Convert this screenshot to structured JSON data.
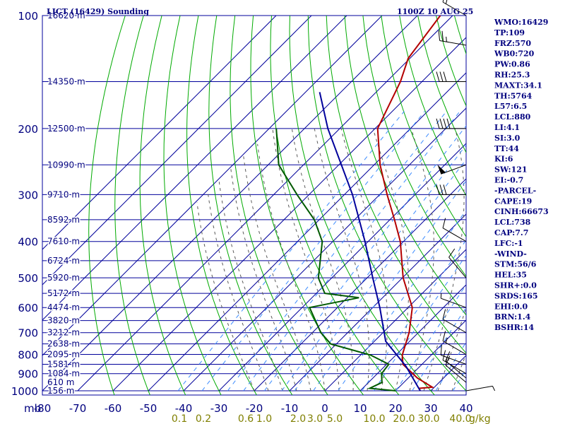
{
  "chart_data": {
    "type": "line",
    "title": "LICT (16429) Sounding",
    "datetime": "1100Z 10 AUG 25",
    "y_axis": {
      "scale": "log",
      "range": [
        1000,
        100
      ],
      "ticks": [
        1000,
        900,
        800,
        700,
        600,
        500,
        400,
        300,
        200,
        100
      ],
      "ticks_text": [
        "1000",
        "900",
        "800",
        "700",
        "600",
        "500",
        "400",
        "300",
        "200",
        "100"
      ],
      "unit_label": "mb"
    },
    "x_axis": {
      "range": [
        -80,
        0
      ],
      "ticks_text": [
        "-80",
        "-70",
        "-60",
        "-50",
        "-40",
        "-30",
        "-20",
        "-10",
        "0",
        "10",
        "20",
        "30",
        "40"
      ],
      "skew": "skew-T"
    },
    "height_labels": [
      {
        "p": 1000,
        "text": "156 m"
      },
      {
        "p": 950,
        "text": "610 m"
      },
      {
        "p": 900,
        "text": "1084 m"
      },
      {
        "p": 850,
        "text": "1581 m"
      },
      {
        "p": 800,
        "text": "2095 m"
      },
      {
        "p": 750,
        "text": "2638 m"
      },
      {
        "p": 700,
        "text": "3212 m"
      },
      {
        "p": 650,
        "text": "3820 m"
      },
      {
        "p": 600,
        "text": "4474 m"
      },
      {
        "p": 550,
        "text": "5172 m"
      },
      {
        "p": 500,
        "text": "5920 m"
      },
      {
        "p": 450,
        "text": "6724 m"
      },
      {
        "p": 400,
        "text": "7610 m"
      },
      {
        "p": 350,
        "text": "8592 m"
      },
      {
        "p": 300,
        "text": "9710 m"
      },
      {
        "p": 250,
        "text": "10990 m"
      },
      {
        "p": 200,
        "text": "12500 m"
      },
      {
        "p": 150,
        "text": "14350 m"
      },
      {
        "p": 100,
        "text": "16620 m"
      }
    ],
    "mixing_ratio_labels": [
      "0.1",
      "0.2",
      "0.6",
      "1.0",
      "2.0",
      "3.0",
      "5.0",
      "10.0",
      "20.0",
      "30.0",
      "40.0"
    ],
    "mixing_ratio_unit": "g/kg",
    "series": [
      {
        "name": "temperature",
        "color": "#b40000",
        "points": [
          {
            "p": 1000,
            "t": 27.0
          },
          {
            "p": 985,
            "t": 26.0
          },
          {
            "p": 978,
            "t": 29.4
          },
          {
            "p": 925,
            "t": 22.6
          },
          {
            "p": 850,
            "t": 14.6
          },
          {
            "p": 803,
            "t": 11.8
          },
          {
            "p": 700,
            "t": 7.4
          },
          {
            "p": 600,
            "t": 1.2
          },
          {
            "p": 500,
            "t": -9.8
          },
          {
            "p": 400,
            "t": -20.9
          },
          {
            "p": 350,
            "t": -28.7
          },
          {
            "p": 300,
            "t": -37.9
          },
          {
            "p": 250,
            "t": -48.3
          },
          {
            "p": 200,
            "t": -59.3
          },
          {
            "p": 150,
            "t": -66.1
          },
          {
            "p": 130,
            "t": -70.5
          },
          {
            "p": 100,
            "t": -73.5
          }
        ]
      },
      {
        "name": "dewpoint",
        "color": "#005a00",
        "points": [
          {
            "p": 1000,
            "t": 20.0
          },
          {
            "p": 985,
            "t": 12.0
          },
          {
            "p": 950,
            "t": 13.8
          },
          {
            "p": 900,
            "t": 11.2
          },
          {
            "p": 850,
            "t": 10.6
          },
          {
            "p": 803,
            "t": 2.8
          },
          {
            "p": 750,
            "t": -11.6
          },
          {
            "p": 700,
            "t": -17.6
          },
          {
            "p": 600,
            "t": -27.9
          },
          {
            "p": 565,
            "t": -16.7
          },
          {
            "p": 550,
            "t": -27.6
          },
          {
            "p": 500,
            "t": -33.8
          },
          {
            "p": 400,
            "t": -43.0
          },
          {
            "p": 350,
            "t": -51.4
          },
          {
            "p": 300,
            "t": -63.4
          },
          {
            "p": 250,
            "t": -77.0
          },
          {
            "p": 200,
            "t": -88.0
          }
        ]
      },
      {
        "name": "parcel",
        "color": "#00009b",
        "points": [
          {
            "p": 1000,
            "t": 27.0
          },
          {
            "p": 860,
            "t": 16.0
          },
          {
            "p": 738,
            "t": 3.2
          },
          {
            "p": 600,
            "t": -8.0
          },
          {
            "p": 500,
            "t": -18.4
          },
          {
            "p": 400,
            "t": -30.9
          },
          {
            "p": 300,
            "t": -47.7
          },
          {
            "p": 200,
            "t": -73.4
          },
          {
            "p": 160,
            "t": -86.0
          }
        ]
      }
    ],
    "wind_barbs": [
      {
        "p": 1000,
        "dir": 80,
        "spd": 5
      },
      {
        "p": 950,
        "dir": 310,
        "spd": 10
      },
      {
        "p": 925,
        "dir": 310,
        "spd": 10
      },
      {
        "p": 900,
        "dir": 300,
        "spd": 15
      },
      {
        "p": 850,
        "dir": 290,
        "spd": 10
      },
      {
        "p": 800,
        "dir": 300,
        "spd": 15
      },
      {
        "p": 700,
        "dir": 300,
        "spd": 10
      },
      {
        "p": 600,
        "dir": 290,
        "spd": 5
      },
      {
        "p": 500,
        "dir": 320,
        "spd": 10
      },
      {
        "p": 400,
        "dir": 300,
        "spd": 10
      },
      {
        "p": 300,
        "dir": 270,
        "spd": 30
      },
      {
        "p": 250,
        "dir": 250,
        "spd": 50
      },
      {
        "p": 200,
        "dir": 270,
        "spd": 40
      },
      {
        "p": 150,
        "dir": 270,
        "spd": 30
      },
      {
        "p": 120,
        "dir": 280,
        "spd": 25
      },
      {
        "p": 100,
        "dir": 300,
        "spd": 20
      }
    ],
    "indices": [
      "WMO:16429",
      "TP:109",
      "FRZ:570",
      "WB0:720",
      "PW:0.86",
      "RH:25.3",
      "MAXT:34.1",
      "TH:5764",
      "L57:6.5",
      "LCL:880",
      "LI:4.1",
      "SI:3.0",
      "TT:44",
      "KI:6",
      "SW:121",
      "EI:-0.7",
      "-PARCEL-",
      "CAPE:19",
      "CINH:66673",
      "LCL:738",
      "CAP:7.7",
      "LFC:-1",
      "-WIND-",
      "STM:56/6",
      "HEL:35",
      "SHR+:0.0",
      "SRDS:165",
      "EHI:0.0",
      "BRN:1.4",
      "BSHR:14"
    ],
    "colors": {
      "grid": "#00009b",
      "dry_adiabat": "#00aa00",
      "moist_adiabat": "#5a5a5a",
      "mixing_ratio": "#3c8cff",
      "text": "#00007f",
      "mixing_ratio_text": "#7f7f00"
    }
  }
}
